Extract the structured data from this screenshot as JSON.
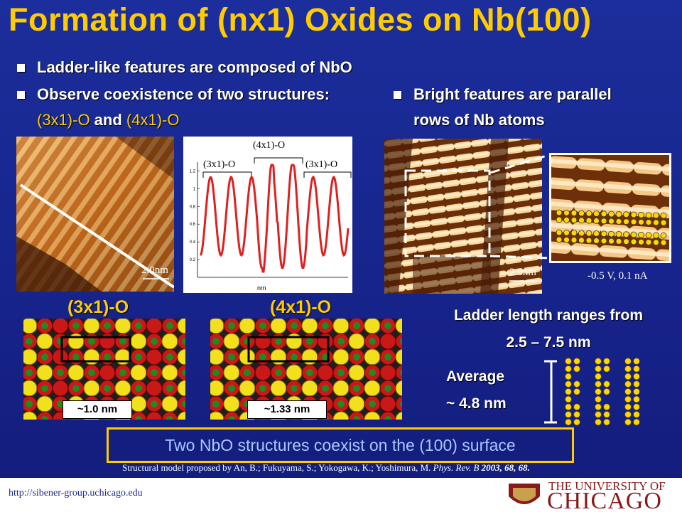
{
  "title": "Formation of (nx1) Oxides on Nb(100)",
  "bullets": [
    "Ladder-like features are composed of NbO",
    [
      "Observe coexistence of two structures:  ",
      "(3x1)-O",
      " and ",
      "(4x1)-O"
    ],
    "Bright features are parallel rows of Nb atoms"
  ],
  "images": [
    {
      "scale": "2.0nm"
    },
    {
      "scale": "2.0nm"
    },
    {
      "params": "-0.5 V, 0.1 nA"
    }
  ],
  "plot": {
    "top_label": "(4x1)-O",
    "side_labels": [
      "(3x1)-O",
      "(3x1)-O"
    ],
    "x_label": "nm",
    "yticks": [
      0.2,
      0.4,
      0.6,
      0.8,
      1,
      1.2
    ],
    "ylim": [
      0,
      1.3
    ]
  },
  "models": [
    {
      "label": "(3x1)-O",
      "size": "~1.0 nm"
    },
    {
      "label": "(4x1)-O",
      "size": "~1.33 nm"
    }
  ],
  "ladder": {
    "line1": "Ladder length ranges from",
    "line2": "2.5 – 7.5 nm",
    "average_label": "Average",
    "average_value": "~ 4.8 nm"
  },
  "conclusion": "Two NbO structures coexist on the (100) surface",
  "citation": {
    "text": "Structural model proposed by An, B.; Fukuyama, S.; Yokogawa, K.; Yoshimura, M. ",
    "journal": "Phys. Rev. B",
    "ref": " 2003, 68, 68."
  },
  "footer": {
    "url": "http://sibener-group.uchicago.edu",
    "logo_top": "THE UNIVERSITY OF",
    "logo_main": "CHICAGO"
  }
}
